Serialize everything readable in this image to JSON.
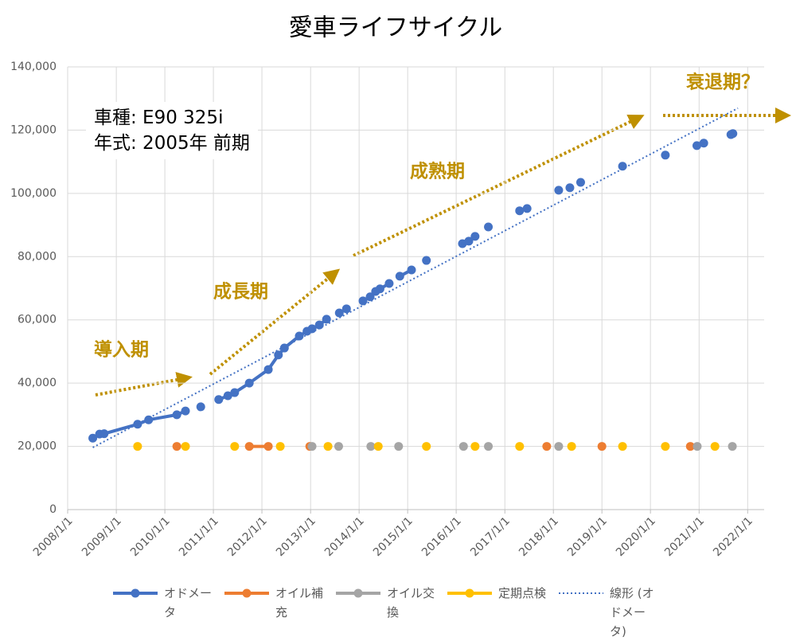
{
  "chart_data": {
    "type": "line",
    "title": "愛車ライフサイクル",
    "info_lines": [
      "車種: E90 325i",
      "年式: 2005年 前期"
    ],
    "annotations": [
      "導入期",
      "成長期",
      "成熟期",
      "衰退期？"
    ],
    "xlim": [
      "2008/1/1",
      "2022/5/5"
    ],
    "xticks": [
      "2008/1/1",
      "2009/1/1",
      "2010/1/1",
      "2011/1/1",
      "2012/1/1",
      "2013/1/1",
      "2014/1/1",
      "2015/1/1",
      "2016/1/1",
      "2017/1/1",
      "2018/1/1",
      "2019/1/1",
      "2020/1/1",
      "2021/1/1",
      "2022/1/1"
    ],
    "ylim": [
      0,
      140000
    ],
    "yticks": [
      0,
      {
        "value": 20000,
        "label": "20,000"
      },
      {
        "value": 40000,
        "label": "40,000"
      },
      {
        "value": 60000,
        "label": "60,000"
      },
      {
        "value": 80000,
        "label": "80,000"
      },
      {
        "value": 100000,
        "label": "100,000"
      },
      {
        "value": 120000,
        "label": "120,000"
      },
      {
        "value": 140000,
        "label": "140,000"
      }
    ],
    "grid": true,
    "legend": "bottom",
    "series": [
      {
        "name": "オドメータ",
        "color": "#4472c4",
        "markers": true,
        "line_style": "solid",
        "x": [
          "2008/7/8",
          "2008/8/28",
          "2008/10/1",
          "2009/6/10",
          "2009/9/1",
          "2010/4/1",
          "2010/6/5",
          null,
          "2010/9/28",
          null,
          "2011/2/10",
          "2011/4/20",
          "2011/6/10",
          "2011/9/28",
          "2012/2/18",
          "2012/5/4",
          "2012/6/18",
          "2012/10/8",
          "2012/12/5",
          "2013/1/12",
          "2013/3/8",
          "2013/5/1",
          null,
          "2013/8/5",
          "2013/9/28",
          null,
          "2014/1/30",
          "2014/3/25",
          "2014/5/5",
          "2014/6/7",
          "2014/8/15",
          null,
          "2014/11/3",
          "2015/1/30",
          null,
          "2015/5/22",
          null,
          "2016/2/17",
          "2016/4/5",
          "2016/5/22",
          null,
          "2016/8/30",
          null,
          "2017/4/22",
          null,
          "2017/6/17",
          null,
          "2018/2/10",
          null,
          "2018/5/5",
          null,
          "2018/7/25",
          null,
          "2019/6/5",
          null,
          "2020/4/22",
          null,
          "2020/12/15",
          null,
          "2021/2/5",
          null,
          "2021/8/28",
          "2021/9/12"
        ],
        "values": [
          22600,
          23900,
          24000,
          27000,
          28400,
          30000,
          31200,
          null,
          32500,
          null,
          34800,
          36000,
          37000,
          40000,
          44300,
          48900,
          51100,
          54900,
          56400,
          57200,
          58400,
          60200,
          null,
          62200,
          63500,
          null,
          66000,
          67300,
          69000,
          69800,
          71500,
          null,
          73800,
          75800,
          null,
          78800,
          null,
          84100,
          84900,
          86400,
          null,
          89400,
          null,
          94500,
          null,
          95200,
          null,
          101000,
          null,
          101800,
          null,
          103500,
          null,
          108600,
          null,
          112100,
          null,
          115100,
          null,
          115900,
          null,
          118600,
          118900
        ]
      },
      {
        "name": "オイル補充",
        "color": "#ed7d31",
        "markers": true,
        "line_style": "solid",
        "x": [
          "2010/4/1",
          null,
          "2011/9/28",
          "2012/2/18",
          null,
          "2012/12/26",
          null,
          "2017/11/12",
          null,
          "2019/1/1",
          null,
          "2020/10/27"
        ],
        "values": [
          20000,
          null,
          20000,
          20000,
          null,
          20000,
          null,
          20000,
          null,
          20000,
          null,
          20000
        ]
      },
      {
        "name": "オイル交換",
        "color": "#a5a5a5",
        "markers": true,
        "line_style": "solid",
        "x": [
          "2013/1/12",
          null,
          "2013/7/31",
          null,
          "2014/3/30",
          null,
          "2014/10/25",
          null,
          "2016/2/25",
          null,
          "2016/8/30",
          null,
          "2018/2/10",
          null,
          "2020/12/18",
          null,
          "2021/9/8"
        ],
        "values": [
          20000,
          null,
          20000,
          null,
          20000,
          null,
          20000,
          null,
          20000,
          null,
          20000,
          null,
          20000,
          null,
          20000,
          null,
          20000
        ]
      },
      {
        "name": "定期点検",
        "color": "#ffc000",
        "markers": true,
        "line_style": "solid",
        "x": [
          "2009/6/10",
          null,
          "2010/6/5",
          null,
          "2011/6/10",
          null,
          "2012/5/18",
          null,
          "2013/5/12",
          null,
          "2014/5/25",
          null,
          "2015/5/22",
          null,
          "2016/5/22",
          null,
          "2017/4/22",
          null,
          "2018/5/18",
          null,
          "2019/6/5",
          null,
          "2020/4/22",
          null,
          "2021/4/30"
        ],
        "values": [
          20000,
          null,
          20000,
          null,
          20000,
          null,
          20000,
          null,
          20000,
          null,
          20000,
          null,
          20000,
          null,
          20000,
          null,
          20000,
          null,
          20000,
          null,
          20000,
          null,
          20000,
          null,
          20000
        ]
      },
      {
        "name": "線形 (オドメータ)",
        "color": "#4472c4",
        "markers": false,
        "line_style": "dotted",
        "x": [
          "2008/7/8",
          "2021/10/20"
        ],
        "values": [
          19650,
          126950
        ]
      }
    ]
  }
}
